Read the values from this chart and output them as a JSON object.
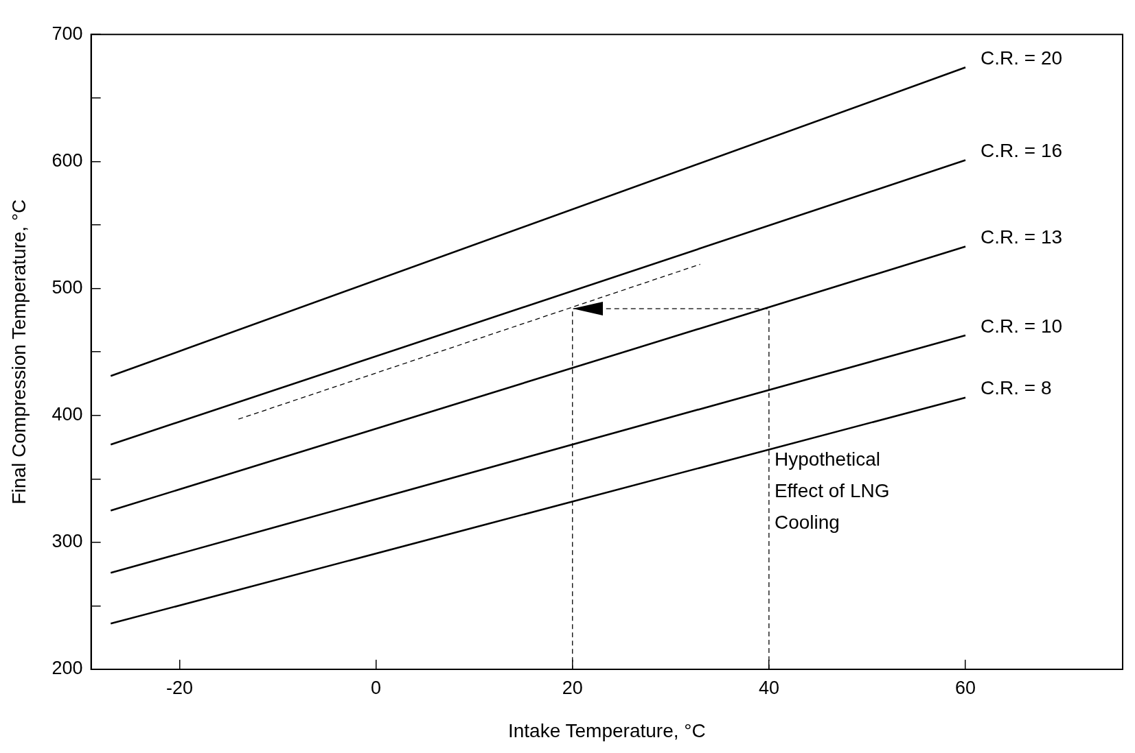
{
  "chart_data": {
    "type": "line",
    "xlabel": "Intake Temperature, °C",
    "ylabel": "Final Compression Temperature, °C",
    "xlim": [
      -29,
      76
    ],
    "xticks": [
      -20,
      0,
      20,
      40,
      60
    ],
    "ylim": [
      200,
      700
    ],
    "yticks": [
      200,
      {
        "value": 250,
        "label": null
      },
      300,
      {
        "value": 350,
        "label": null
      },
      400,
      {
        "value": 450,
        "label": null
      },
      500,
      {
        "value": 550,
        "label": null
      },
      600,
      {
        "value": 650,
        "label": null
      },
      700
    ],
    "grid": false,
    "legend": false,
    "marker": "none",
    "line_style": "solid",
    "series": [
      {
        "name": "C.R. = 20",
        "color": "#000000",
        "x": [
          -27,
          60
        ],
        "values": [
          431,
          674
        ]
      },
      {
        "name": "C.R. = 16",
        "color": "#000000",
        "x": [
          -27,
          60
        ],
        "values": [
          377,
          601
        ]
      },
      {
        "name": "C.R. = 13",
        "color": "#000000",
        "x": [
          -27,
          60
        ],
        "values": [
          325,
          533
        ]
      },
      {
        "name": "C.R. = 10",
        "color": "#000000",
        "x": [
          -27,
          60
        ],
        "values": [
          276,
          463
        ]
      },
      {
        "name": "C.R. = 8",
        "color": "#000000",
        "x": [
          -27,
          60
        ],
        "values": [
          236,
          414
        ]
      },
      {
        "color": "#000000",
        "line_style": "dashed",
        "x": [
          -14,
          33
        ],
        "values": [
          397,
          519
        ]
      },
      {
        "color": "#000000",
        "line_style": "dashed",
        "x": [
          40,
          40,
          20,
          20
        ],
        "values": [
          200,
          484,
          484,
          200
        ]
      }
    ],
    "annotations": [
      {
        "text": "Hypothetical Effect of LNG Cooling",
        "x": 40,
        "y": 300
      }
    ]
  }
}
